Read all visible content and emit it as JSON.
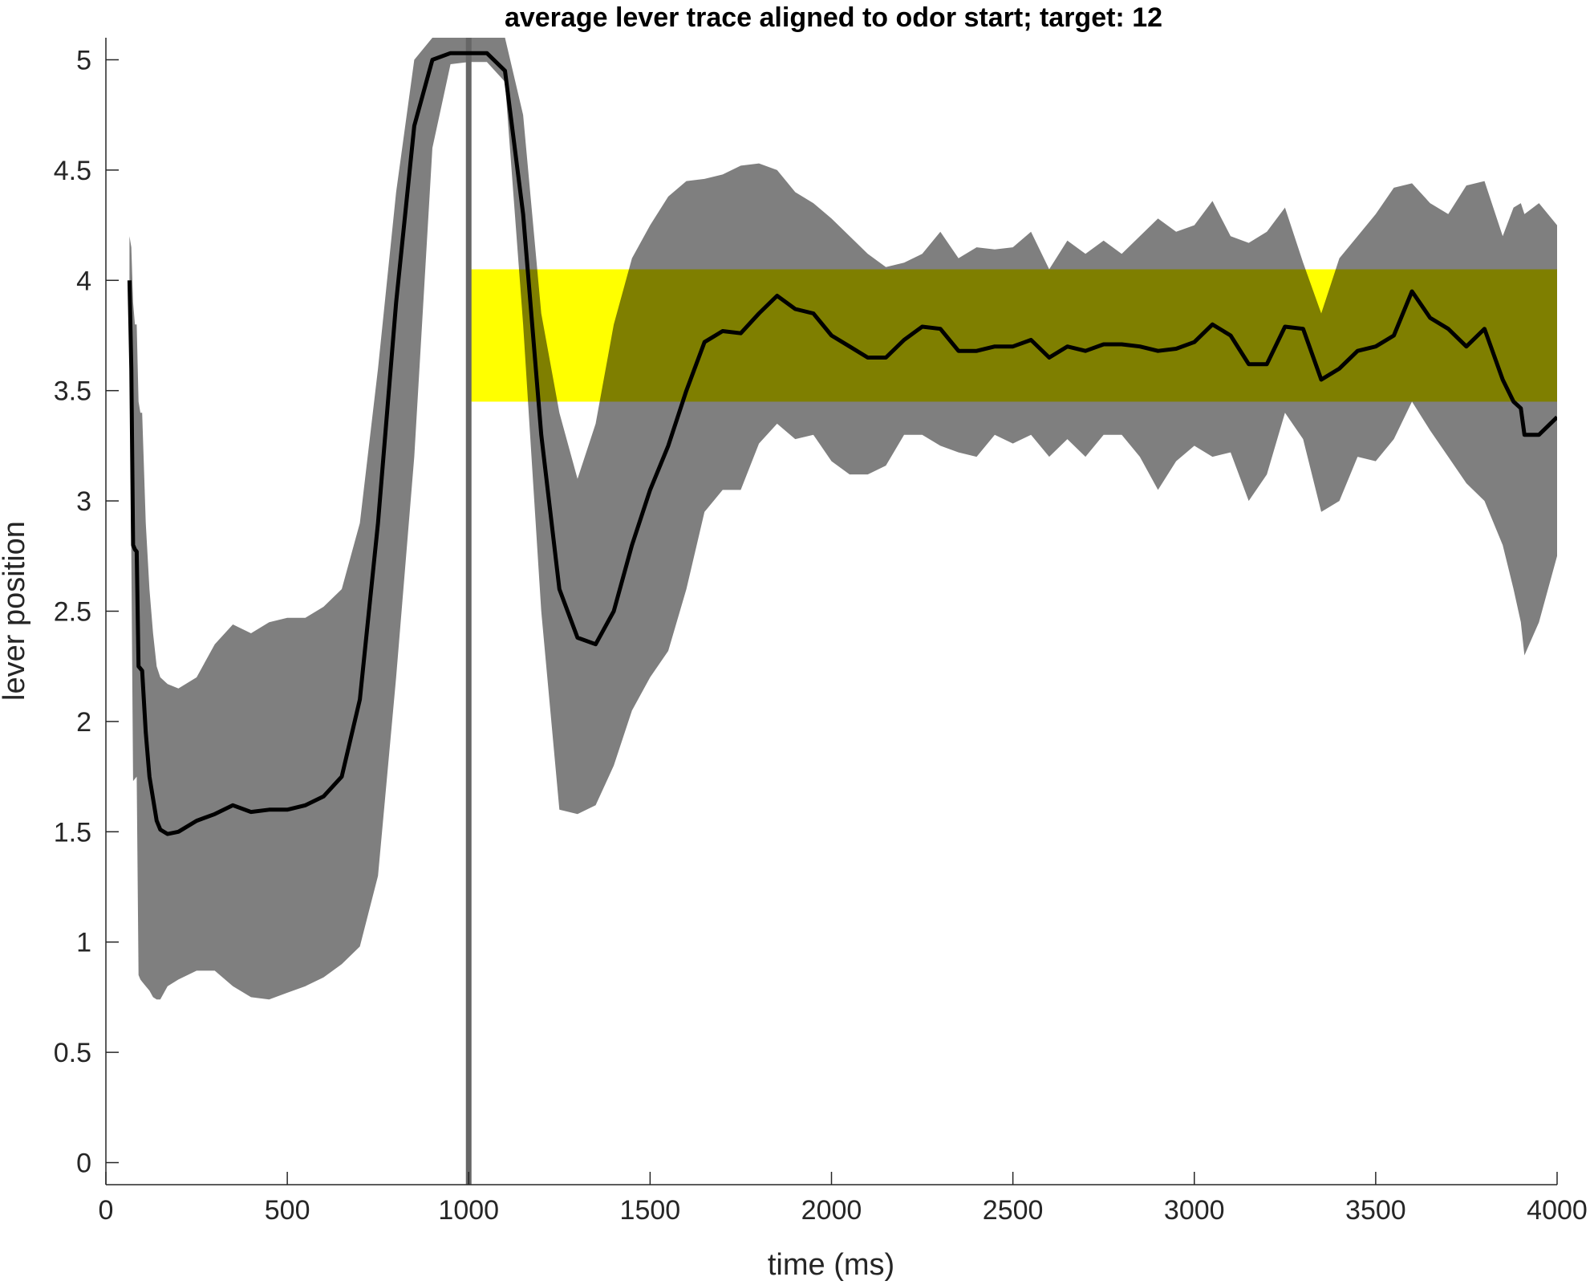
{
  "chart_data": {
    "type": "line",
    "title": "average lever trace aligned to odor start; target: 12",
    "xlabel": "time (ms)",
    "ylabel": "lever position",
    "xlim": [
      0,
      4000
    ],
    "ylim": [
      -0.1,
      5.1
    ],
    "x_ticks": [
      0,
      500,
      1000,
      1500,
      2000,
      2500,
      3000,
      3500,
      4000
    ],
    "x_tick_labels": [
      "0",
      "500",
      "1000",
      "1500",
      "2000",
      "2500",
      "3000",
      "3500",
      "4000"
    ],
    "y_ticks": [
      0,
      0.5,
      1,
      1.5,
      2,
      2.5,
      3,
      3.5,
      4,
      4.5,
      5
    ],
    "y_tick_labels": [
      "0",
      "0.5",
      "1",
      "1.5",
      "2",
      "2.5",
      "3",
      "3.5",
      "4",
      "4.5",
      "5"
    ],
    "grid": false,
    "target_band": {
      "x": [
        1000,
        4000
      ],
      "y": [
        3.45,
        4.05
      ],
      "color": "#ffff00"
    },
    "odor_start_line": {
      "x": 1000,
      "color": "#666666"
    },
    "shaded_color": "#7f7f7f",
    "line_color": "#000000",
    "series": [
      {
        "x": [
          65,
          70,
          75,
          80,
          85,
          90,
          95,
          100,
          110,
          120,
          130,
          140,
          150,
          170,
          200,
          250,
          300,
          350,
          400,
          450,
          500,
          550,
          600,
          650,
          700,
          750,
          800,
          850,
          900,
          950,
          1000,
          1050,
          1100,
          1150,
          1200,
          1250,
          1300,
          1350,
          1400,
          1450,
          1500,
          1550,
          1600,
          1650,
          1700,
          1750,
          1800,
          1850,
          1900,
          1950,
          2000,
          2050,
          2100,
          2150,
          2200,
          2250,
          2300,
          2350,
          2400,
          2450,
          2500,
          2550,
          2600,
          2650,
          2700,
          2750,
          2800,
          2850,
          2900,
          2950,
          3000,
          3050,
          3100,
          3150,
          3200,
          3250,
          3300,
          3350,
          3400,
          3450,
          3500,
          3550,
          3600,
          3650,
          3700,
          3750,
          3800,
          3850,
          3880,
          3900,
          3910,
          3950,
          4000
        ],
        "mean": [
          4.0,
          3.6,
          2.8,
          2.78,
          2.77,
          2.25,
          2.24,
          2.23,
          1.95,
          1.75,
          1.65,
          1.55,
          1.51,
          1.49,
          1.5,
          1.55,
          1.58,
          1.62,
          1.59,
          1.6,
          1.6,
          1.62,
          1.66,
          1.75,
          2.1,
          2.9,
          3.9,
          4.7,
          5.0,
          5.03,
          5.03,
          5.03,
          4.95,
          4.3,
          3.3,
          2.6,
          2.38,
          2.35,
          2.5,
          2.8,
          3.05,
          3.25,
          3.5,
          3.72,
          3.77,
          3.76,
          3.85,
          3.93,
          3.87,
          3.85,
          3.75,
          3.7,
          3.65,
          3.65,
          3.73,
          3.79,
          3.78,
          3.68,
          3.68,
          3.7,
          3.7,
          3.73,
          3.65,
          3.7,
          3.68,
          3.71,
          3.71,
          3.7,
          3.68,
          3.69,
          3.72,
          3.8,
          3.75,
          3.62,
          3.62,
          3.79,
          3.78,
          3.55,
          3.6,
          3.68,
          3.7,
          3.75,
          3.95,
          3.83,
          3.78,
          3.7,
          3.78,
          3.55,
          3.45,
          3.42,
          3.3,
          3.3,
          3.38
        ],
        "upper": [
          4.2,
          4.15,
          3.9,
          3.8,
          3.8,
          3.45,
          3.4,
          3.4,
          2.9,
          2.6,
          2.4,
          2.25,
          2.2,
          2.17,
          2.15,
          2.2,
          2.35,
          2.44,
          2.4,
          2.45,
          2.47,
          2.47,
          2.52,
          2.6,
          2.9,
          3.6,
          4.4,
          5.0,
          5.1,
          5.1,
          5.1,
          5.1,
          5.1,
          4.75,
          3.85,
          3.4,
          3.1,
          3.35,
          3.8,
          4.1,
          4.25,
          4.38,
          4.45,
          4.46,
          4.48,
          4.52,
          4.53,
          4.5,
          4.4,
          4.35,
          4.28,
          4.2,
          4.12,
          4.06,
          4.08,
          4.12,
          4.22,
          4.1,
          4.15,
          4.14,
          4.15,
          4.22,
          4.05,
          4.18,
          4.12,
          4.18,
          4.12,
          4.2,
          4.28,
          4.22,
          4.25,
          4.36,
          4.2,
          4.17,
          4.22,
          4.33,
          4.08,
          3.85,
          4.1,
          4.2,
          4.3,
          4.42,
          4.44,
          4.35,
          4.3,
          4.43,
          4.45,
          4.2,
          4.33,
          4.35,
          4.3,
          4.35,
          4.25
        ],
        "lower": [
          3.8,
          2.75,
          1.73,
          1.74,
          1.75,
          0.85,
          0.83,
          0.82,
          0.8,
          0.78,
          0.75,
          0.74,
          0.74,
          0.8,
          0.83,
          0.87,
          0.87,
          0.8,
          0.75,
          0.74,
          0.77,
          0.8,
          0.84,
          0.9,
          0.98,
          1.3,
          2.2,
          3.2,
          4.6,
          4.98,
          4.99,
          4.99,
          4.9,
          3.8,
          2.5,
          1.6,
          1.58,
          1.62,
          1.8,
          2.05,
          2.2,
          2.32,
          2.6,
          2.95,
          3.05,
          3.05,
          3.26,
          3.35,
          3.28,
          3.3,
          3.18,
          3.12,
          3.12,
          3.16,
          3.3,
          3.3,
          3.25,
          3.22,
          3.2,
          3.3,
          3.26,
          3.3,
          3.2,
          3.28,
          3.2,
          3.3,
          3.3,
          3.2,
          3.05,
          3.18,
          3.25,
          3.2,
          3.22,
          3.0,
          3.12,
          3.4,
          3.28,
          2.95,
          3.0,
          3.2,
          3.18,
          3.28,
          3.45,
          3.32,
          3.2,
          3.08,
          3.0,
          2.8,
          2.6,
          2.45,
          2.3,
          2.45,
          2.75
        ]
      }
    ]
  }
}
